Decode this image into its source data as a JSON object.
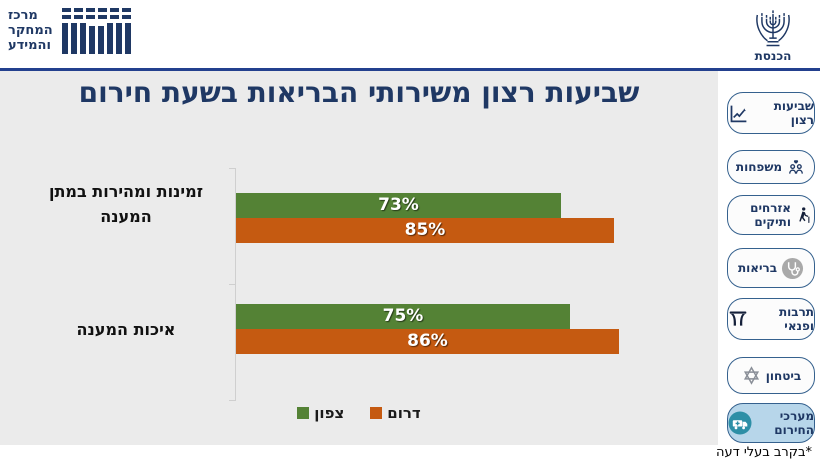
{
  "header": {
    "research_center_logo_lines": [
      "מרכז",
      "המחקר",
      "והמידע"
    ],
    "knesset_label": "הכנסת"
  },
  "chart_data": {
    "type": "bar",
    "orientation": "horizontal",
    "title": "שביעות רצון משירותי הבריאות בשעת חירום",
    "categories": [
      "זמינות ומהירות במתן המענה",
      "איכות המענה"
    ],
    "series": [
      {
        "name": "צפון",
        "color": "#548235",
        "values": [
          73,
          75
        ]
      },
      {
        "name": "דרום",
        "color": "#C55A11",
        "values": [
          85,
          86
        ]
      }
    ],
    "value_suffix": "%",
    "xlim": [
      0,
      100
    ],
    "grid": false,
    "legend_position": "bottom"
  },
  "sidebar": {
    "items": [
      {
        "label": "שביעות רצון",
        "icon": "trend-chart-icon",
        "active": false
      },
      {
        "label": "משפחות",
        "icon": "family-icon",
        "active": false
      },
      {
        "label": "אזרחים ותיקים",
        "icon": "senior-citizen-icon",
        "active": false
      },
      {
        "label": "בריאות",
        "icon": "stethoscope-icon",
        "active": false
      },
      {
        "label": "תרבות ופנאי",
        "icon": "theater-curtain-icon",
        "active": false
      },
      {
        "label": "ביטחון",
        "icon": "star-of-david-icon",
        "active": false
      },
      {
        "label": "מערכי החירום",
        "icon": "ambulance-icon",
        "active": true
      }
    ]
  },
  "footnote": "*בקרב בעלי דעה",
  "colors": {
    "title_navy": "#1F3864",
    "header_rule_blue": "#23408E",
    "panel_gray": "#EBEBEB",
    "button_border_blue": "#35618E",
    "active_button_bg": "#B7D6EA",
    "ambulance_circle_teal": "#2D8FA6",
    "north_green": "#548235",
    "south_orange": "#C55A11"
  }
}
